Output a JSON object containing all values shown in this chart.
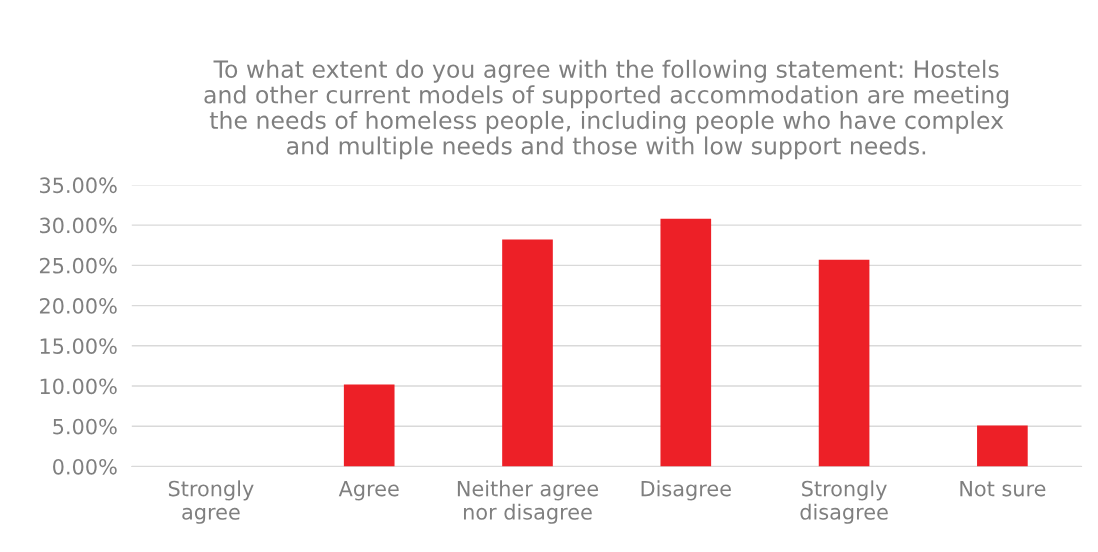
{
  "chart_data": {
    "type": "bar",
    "title": "To what extent do you agree with the following statement: Hostels\nand other current models of supported accommodation are meeting\nthe needs of homeless people, including people who have complex\nand multiple needs and those with low support needs.",
    "categories": [
      "Strongly\nagree",
      "Agree",
      "Neither agree\nnor disagree",
      "Disagree",
      "Strongly\ndisagree",
      "Not sure"
    ],
    "values": [
      0,
      10.2,
      28.2,
      30.8,
      25.7,
      5.1
    ],
    "color": "#ed2027",
    "ylim": [
      0,
      35
    ],
    "yticks": [
      {
        "value": 0,
        "label": "0.00%"
      },
      {
        "value": 5,
        "label": "5.00%"
      },
      {
        "value": 10,
        "label": "10.00%"
      },
      {
        "value": 15,
        "label": "15.00%"
      },
      {
        "value": 20,
        "label": "20.00%"
      },
      {
        "value": 25,
        "label": "25.00%"
      },
      {
        "value": 30,
        "label": "30.00%"
      },
      {
        "value": 35,
        "label": "35.00%"
      }
    ],
    "grid": "y"
  }
}
